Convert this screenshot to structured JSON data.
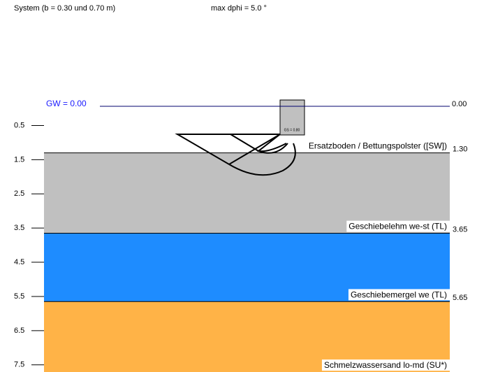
{
  "header": {
    "system": "System (b = 0.30 und 0.70 m)",
    "dphi": "max dphi = 5.0 °"
  },
  "groundwater": {
    "label": "GW = 0.00",
    "depth": {
      "value": 0,
      "label": "0.00"
    }
  },
  "foundation": {
    "label": "GS = 0.80"
  },
  "depth_ticks": [
    0.5,
    1.5,
    2.5,
    3.5,
    4.5,
    5.5,
    6.5,
    7.5
  ],
  "layers": [
    {
      "name": "Ersatzboden / Bettungspolster ([SW])",
      "color": "#ffffff",
      "bottom": {
        "value": 1.3,
        "label": "1.30"
      }
    },
    {
      "name": "Geschiebelehm we-st (TL)",
      "color": "#c0c0c0",
      "bottom": {
        "value": 3.65,
        "label": "3.65"
      }
    },
    {
      "name": "Geschiebemergel we (TL)",
      "color": "#1e8cff",
      "bottom": {
        "value": 5.65,
        "label": "5.65"
      }
    },
    {
      "name": "Schmelzwassersand lo-md (SU*)",
      "color": "#ffb347"
    }
  ]
}
